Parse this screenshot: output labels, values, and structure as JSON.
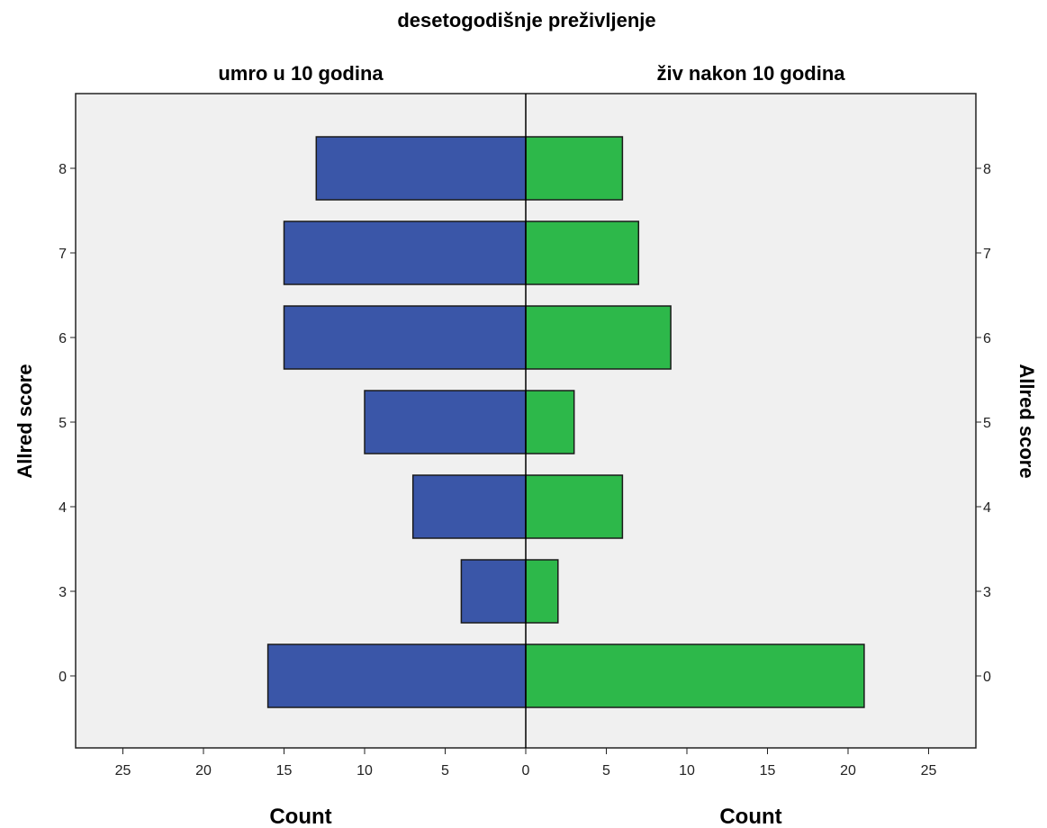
{
  "chart_data": {
    "type": "bar",
    "orientation": "horizontal",
    "layout": "population-pyramid",
    "title": "desetogodišnje preživljenje",
    "categories": [
      "8",
      "7",
      "6",
      "5",
      "4",
      "3",
      "0"
    ],
    "series": [
      {
        "name": "umro u 10 godina",
        "side": "left",
        "color": "#3a56a8",
        "values": [
          13,
          15,
          15,
          10,
          7,
          4,
          16
        ]
      },
      {
        "name": "živ nakon 10 godina",
        "side": "right",
        "color": "#2db84a",
        "values": [
          6,
          7,
          9,
          3,
          6,
          2,
          21
        ]
      }
    ],
    "xlabel_left": "Count",
    "xlabel_right": "Count",
    "ylabel_left": "Allred score",
    "ylabel_right": "Allred score",
    "x_ticks": [
      "25",
      "20",
      "15",
      "10",
      "5",
      "0",
      "5",
      "10",
      "15",
      "20",
      "25"
    ],
    "xlim": [
      0,
      25
    ],
    "grid": false,
    "plot_background": "#f0f0f0",
    "bar_outline": "#1a1a1a"
  }
}
